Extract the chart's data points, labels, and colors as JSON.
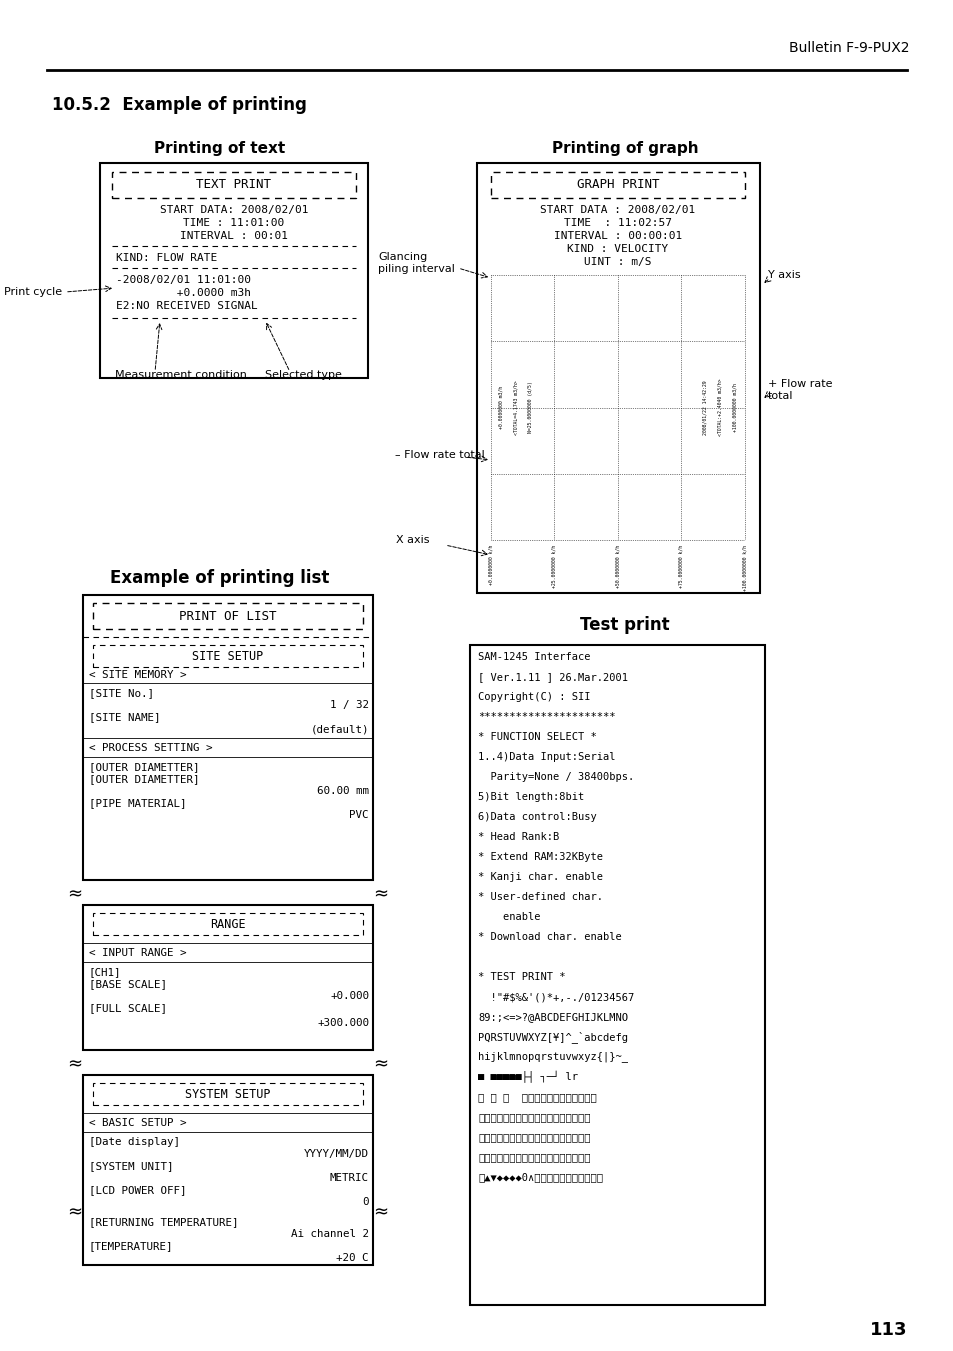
{
  "page_title": "Bulletin F-9-PUX2",
  "section_title": "10.5.2  Example of printing",
  "bg_color": "#ffffff",
  "page_number": "113",
  "printing_of_text_title": "Printing of text",
  "printing_of_graph_title": "Printing of graph",
  "example_list_title": "Example of printing list",
  "test_print_title": "Test print",
  "glancing_label": "Glancing\npiling interval",
  "y_axis_label": "Y axis",
  "flow_rate_total_plus": "+ Flow rate\ntotal",
  "flow_rate_total_minus": "– Flow rate total",
  "x_axis_label": "X axis",
  "print_cycle_label": "Print cycle",
  "measurement_condition_label": "Measurement condition",
  "selected_type_label": "Selected type"
}
